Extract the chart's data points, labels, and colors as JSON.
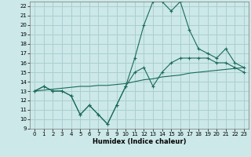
{
  "xlabel": "Humidex (Indice chaleur)",
  "bg_color": "#cce8e8",
  "grid_color": "#aacfcf",
  "line_color": "#1a6b5a",
  "x": [
    0,
    1,
    2,
    3,
    4,
    5,
    6,
    7,
    8,
    9,
    10,
    11,
    12,
    13,
    14,
    15,
    16,
    17,
    18,
    19,
    20,
    21,
    22,
    23
  ],
  "line1": [
    13,
    13.5,
    13,
    13,
    12.5,
    10.5,
    11.5,
    10.5,
    9.5,
    11.5,
    13.5,
    16.5,
    20,
    22.5,
    22.5,
    21.5,
    22.5,
    19.5,
    17.5,
    17.0,
    16.5,
    17.5,
    16.0,
    15.5
  ],
  "line2": [
    13,
    13.5,
    13,
    13,
    12.5,
    10.5,
    11.5,
    10.5,
    9.5,
    11.5,
    13.5,
    15.0,
    15.5,
    13.5,
    15.0,
    16.0,
    16.5,
    16.5,
    16.5,
    16.5,
    16.0,
    16.0,
    15.5,
    15.0
  ],
  "line3": [
    13,
    13.1,
    13.2,
    13.3,
    13.4,
    13.5,
    13.5,
    13.6,
    13.6,
    13.7,
    13.8,
    14.0,
    14.2,
    14.3,
    14.5,
    14.6,
    14.7,
    14.9,
    15.0,
    15.1,
    15.2,
    15.3,
    15.4,
    15.5
  ],
  "ylim": [
    9,
    22.5
  ],
  "xlim": [
    -0.5,
    23.5
  ],
  "yticks": [
    9,
    10,
    11,
    12,
    13,
    14,
    15,
    16,
    17,
    18,
    19,
    20,
    21,
    22
  ],
  "xticks": [
    0,
    1,
    2,
    3,
    4,
    5,
    6,
    7,
    8,
    9,
    10,
    11,
    12,
    13,
    14,
    15,
    16,
    17,
    18,
    19,
    20,
    21,
    22,
    23
  ]
}
